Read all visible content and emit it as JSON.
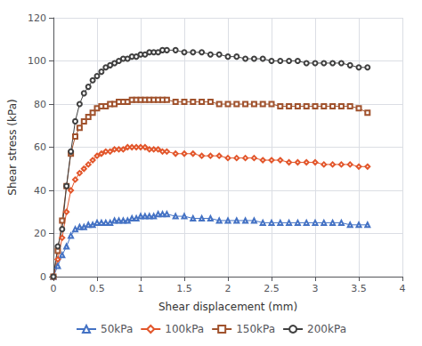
{
  "chart_data": {
    "type": "line",
    "xlabel": "Shear displacement (mm)",
    "ylabel": "Shear stress (kPa)",
    "xlim": [
      0,
      4
    ],
    "ylim": [
      0,
      120
    ],
    "xticks": [
      0,
      0.5,
      1,
      1.5,
      2,
      2.5,
      3,
      3.5,
      4
    ],
    "yticks": [
      0,
      20,
      40,
      60,
      80,
      100,
      120
    ],
    "grid": true,
    "legend": "bottom",
    "x": [
      0,
      0.05,
      0.1,
      0.15,
      0.2,
      0.25,
      0.3,
      0.35,
      0.4,
      0.45,
      0.5,
      0.55,
      0.6,
      0.65,
      0.7,
      0.75,
      0.8,
      0.85,
      0.9,
      0.95,
      1.0,
      1.05,
      1.1,
      1.15,
      1.2,
      1.25,
      1.3,
      1.4,
      1.5,
      1.6,
      1.7,
      1.8,
      1.9,
      2.0,
      2.1,
      2.2,
      2.3,
      2.4,
      2.5,
      2.6,
      2.7,
      2.8,
      2.9,
      3.0,
      3.1,
      3.2,
      3.3,
      3.4,
      3.5,
      3.6
    ],
    "series": [
      {
        "name": "50kPa",
        "color": "#4472C4",
        "marker": "triangle",
        "values": [
          0,
          5,
          10,
          14,
          19,
          22,
          23,
          23,
          24,
          24,
          25,
          25,
          25,
          25,
          26,
          26,
          26,
          26,
          27,
          27,
          28,
          28,
          28,
          28,
          29,
          29,
          29,
          28,
          28,
          27,
          27,
          27,
          26,
          26,
          26,
          26,
          26,
          25,
          25,
          25,
          25,
          25,
          25,
          25,
          25,
          25,
          25,
          24,
          24,
          24
        ]
      },
      {
        "name": "100kPa",
        "color": "#E2562B",
        "marker": "diamond",
        "values": [
          0,
          8,
          18,
          30,
          40,
          45,
          48,
          50,
          52,
          54,
          56,
          57,
          58,
          58,
          59,
          59,
          59,
          60,
          60,
          60,
          60,
          60,
          59,
          59,
          59,
          58,
          58,
          57,
          57,
          57,
          56,
          56,
          56,
          55,
          55,
          55,
          55,
          54,
          54,
          54,
          53,
          53,
          53,
          53,
          52,
          52,
          52,
          52,
          51,
          51
        ]
      },
      {
        "name": "150kPa",
        "color": "#A0522D",
        "marker": "square",
        "values": [
          0,
          12,
          26,
          42,
          57,
          65,
          69,
          72,
          74,
          76,
          78,
          79,
          79,
          80,
          80,
          81,
          81,
          81,
          82,
          82,
          82,
          82,
          82,
          82,
          82,
          82,
          82,
          81,
          81,
          81,
          81,
          81,
          80,
          80,
          80,
          80,
          80,
          80,
          80,
          79,
          79,
          79,
          79,
          79,
          79,
          79,
          79,
          79,
          78,
          76
        ]
      },
      {
        "name": "200kPa",
        "color": "#404040",
        "marker": "circle",
        "values": [
          0,
          14,
          22,
          42,
          58,
          72,
          80,
          85,
          88,
          91,
          93,
          95,
          97,
          98,
          99,
          100,
          101,
          101,
          102,
          102,
          103,
          103,
          104,
          104,
          104,
          105,
          105,
          105,
          104,
          104,
          104,
          103,
          103,
          102,
          102,
          101,
          101,
          101,
          100,
          100,
          100,
          100,
          99,
          99,
          99,
          99,
          99,
          98,
          97,
          97
        ]
      }
    ]
  }
}
